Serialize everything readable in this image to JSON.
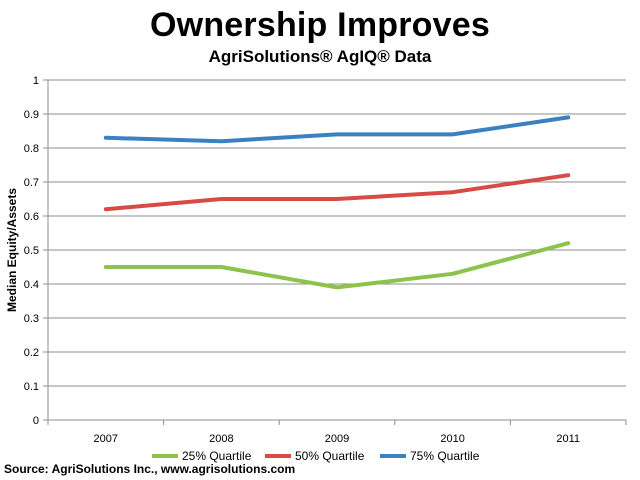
{
  "chart_data": {
    "type": "line",
    "title": "Ownership Improves",
    "subtitle": "AgriSolutions® AgIQ® Data",
    "xlabel": "",
    "ylabel": "Median Equity/Assets",
    "categories": [
      "2007",
      "2008",
      "2009",
      "2010",
      "2011"
    ],
    "ylim": [
      0,
      1
    ],
    "yticks": [
      "0",
      "0.1",
      "0.2",
      "0.3",
      "0.4",
      "0.5",
      "0.6",
      "0.7",
      "0.8",
      "0.9",
      "1"
    ],
    "grid": true,
    "legend_position": "bottom",
    "series": [
      {
        "name": "25% Quartile",
        "color": "#8dc34d",
        "values": [
          0.45,
          0.45,
          0.39,
          0.43,
          0.52
        ]
      },
      {
        "name": "50% Quartile",
        "color": "#d84b44",
        "values": [
          0.62,
          0.65,
          0.65,
          0.67,
          0.72
        ]
      },
      {
        "name": "75% Quartile",
        "color": "#3b80c0",
        "values": [
          0.83,
          0.82,
          0.84,
          0.84,
          0.89
        ]
      }
    ]
  },
  "source": "Source: AgriSolutions Inc., www.agrisolutions.com"
}
